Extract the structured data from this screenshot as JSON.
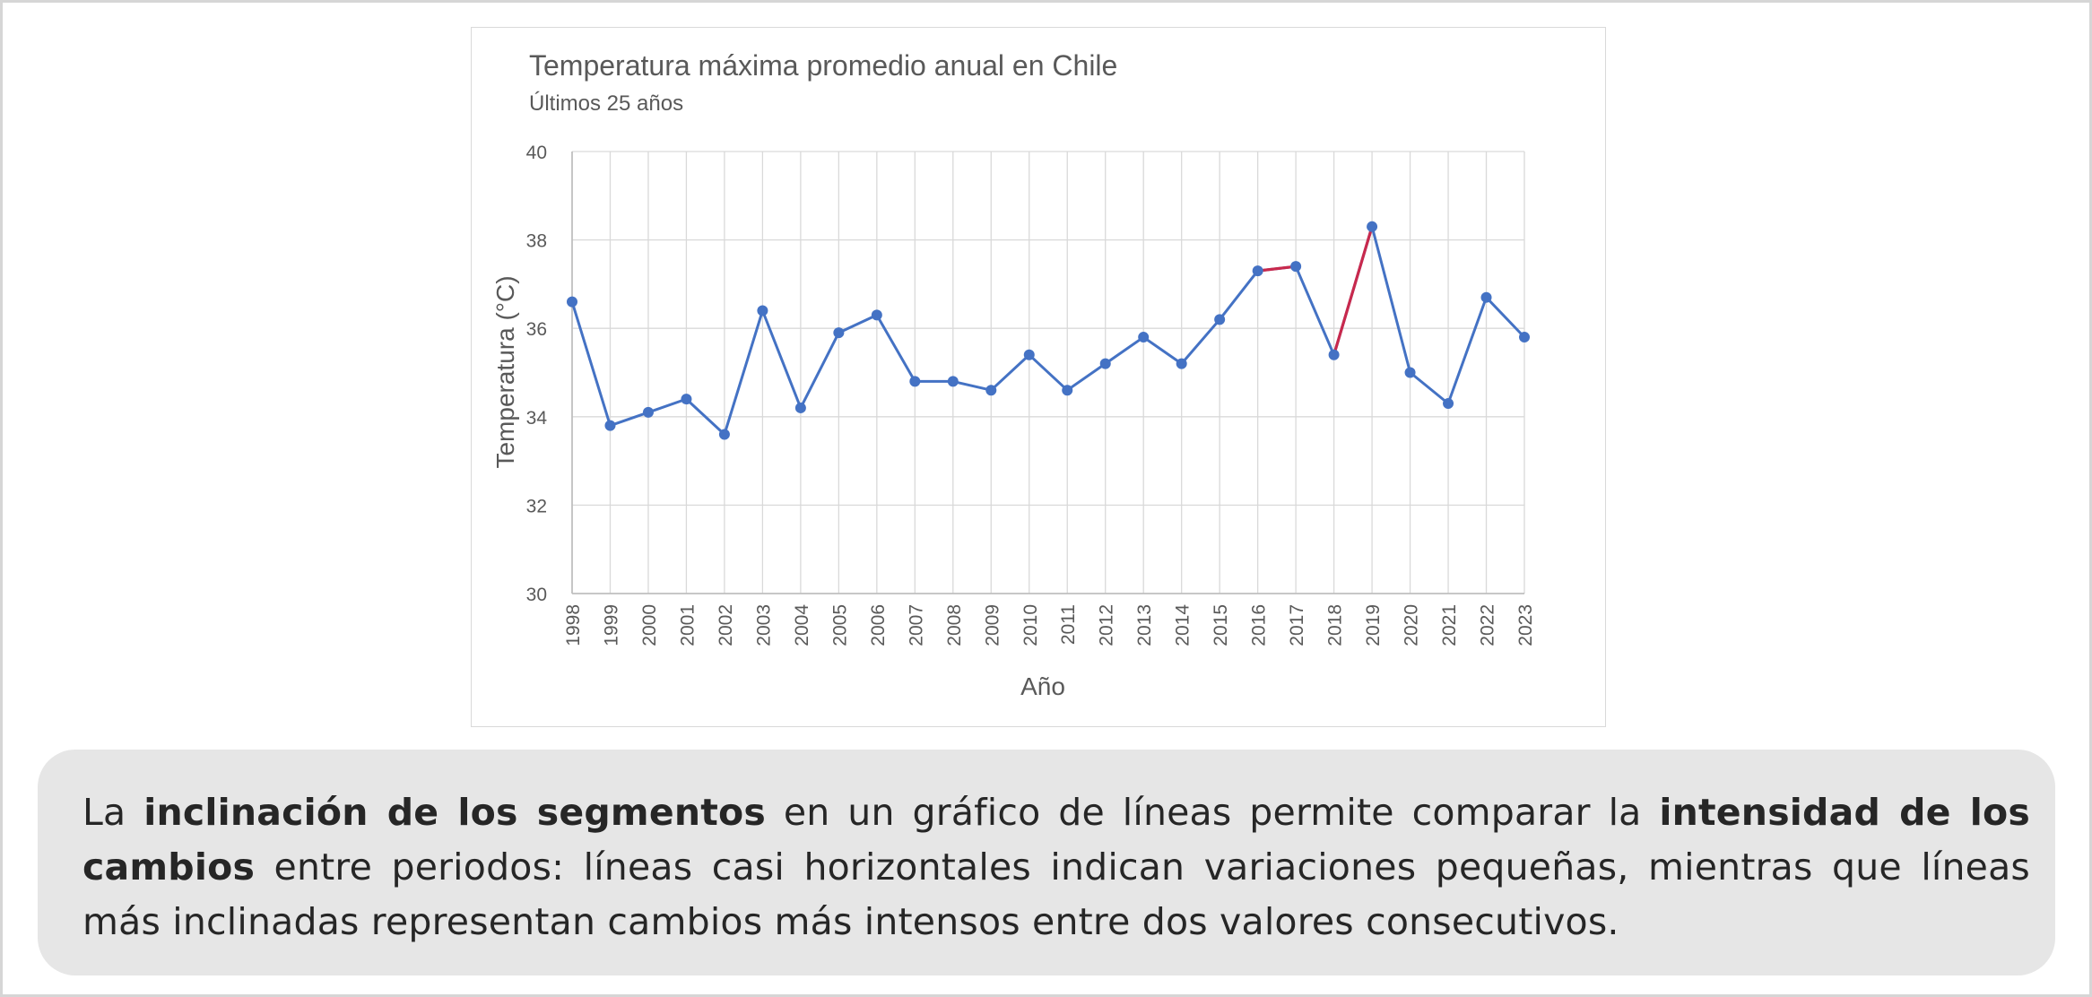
{
  "chart_data": {
    "type": "line",
    "title": "Temperatura máxima promedio anual en Chile",
    "subtitle": "Últimos 25 años",
    "xlabel": "Año",
    "ylabel": "Temperatura (°C)",
    "ylim": [
      30,
      40
    ],
    "y_ticks": [
      30,
      32,
      34,
      36,
      38,
      40
    ],
    "grid": true,
    "legend": "none",
    "categories": [
      "1998",
      "1999",
      "2000",
      "2001",
      "2002",
      "2003",
      "2004",
      "2005",
      "2006",
      "2007",
      "2008",
      "2009",
      "2010",
      "2011",
      "2012",
      "2013",
      "2014",
      "2015",
      "2016",
      "2017",
      "2018",
      "2019",
      "2020",
      "2021",
      "2022",
      "2023"
    ],
    "series": [
      {
        "color": "#4472c4",
        "values": [
          36.6,
          33.8,
          34.1,
          34.4,
          33.6,
          36.4,
          34.2,
          35.9,
          36.3,
          34.8,
          34.8,
          34.6,
          35.4,
          34.6,
          35.2,
          35.8,
          35.2,
          36.2,
          37.3,
          37.4,
          35.4,
          38.3,
          35.0,
          34.3,
          36.7,
          35.8
        ]
      }
    ],
    "highlighted_segments": [
      {
        "from": "2016",
        "to": "2017",
        "color": "#c8294d"
      },
      {
        "from": "2018",
        "to": "2019",
        "color": "#c8294d"
      }
    ]
  },
  "caption": {
    "parts": [
      {
        "text": "La ",
        "bold": false
      },
      {
        "text": "inclinación de los segmentos",
        "bold": true
      },
      {
        "text": " en un gráfico de líneas permite comparar la ",
        "bold": false
      },
      {
        "text": "intensidad de los cambios",
        "bold": true
      },
      {
        "text": " entre periodos: líneas casi horizontales indican variaciones pequeñas, mientras que líneas más inclinadas representan cambios más intensos entre dos valores consecutivos.",
        "bold": false
      }
    ]
  }
}
